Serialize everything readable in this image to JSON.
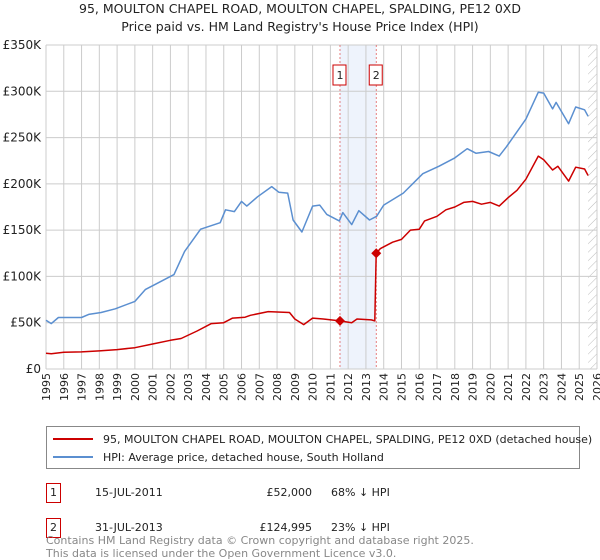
{
  "chart_data": {
    "type": "line",
    "title": "95, MOULTON CHAPEL ROAD, MOULTON CHAPEL, SPALDING, PE12 0XD",
    "subtitle": "Price paid vs. HM Land Registry's House Price Index (HPI)",
    "xlim": [
      1995,
      2026
    ],
    "ylim": [
      0,
      350000
    ],
    "y_ticks": [
      0,
      50000,
      100000,
      150000,
      200000,
      250000,
      300000,
      350000
    ],
    "y_tick_labels": [
      "£0",
      "£50K",
      "£100K",
      "£150K",
      "£200K",
      "£250K",
      "£300K",
      "£350K"
    ],
    "x_ticks": [
      1995,
      1996,
      1997,
      1998,
      1999,
      2000,
      2001,
      2002,
      2003,
      2004,
      2005,
      2006,
      2007,
      2008,
      2009,
      2010,
      2011,
      2012,
      2013,
      2014,
      2015,
      2016,
      2017,
      2018,
      2019,
      2020,
      2021,
      2022,
      2023,
      2024,
      2025,
      2026
    ],
    "grid": true,
    "shaded_period": [
      2011.54,
      2013.58
    ],
    "forecast_hatch_from": 2025.5,
    "series": [
      {
        "name": "95, MOULTON CHAPEL ROAD, MOULTON CHAPEL, SPALDING, PE12 0XD (detached house)",
        "color": "#cc0000",
        "x": [
          1995.0,
          1995.3,
          1996,
          1997,
          1998,
          1999,
          2000,
          2001,
          2002,
          2002.6,
          2003.5,
          2004.3,
          2005,
          2005.5,
          2006.2,
          2006.5,
          2007.5,
          2008.7,
          2009,
          2009.5,
          2010,
          2010.6,
          2011.54,
          2012.2,
          2012.5,
          2013.3,
          2013.5,
          2013.58,
          2013.8,
          2014.5,
          2015,
          2015.5,
          2016,
          2016.3,
          2017,
          2017.5,
          2018,
          2018.5,
          2019,
          2019.5,
          2020,
          2020.5,
          2021,
          2021.5,
          2022,
          2022.7,
          2023,
          2023.5,
          2023.8,
          2024.4,
          2024.8,
          2025.3,
          2025.5
        ],
        "y": [
          17000,
          16500,
          18000,
          18500,
          19500,
          21000,
          23000,
          27000,
          31000,
          33000,
          41000,
          49000,
          50000,
          55000,
          56000,
          58000,
          62000,
          61000,
          54000,
          48000,
          55000,
          54000,
          52000,
          50000,
          54000,
          53000,
          52000,
          124995,
          130000,
          137000,
          140000,
          150000,
          151000,
          160000,
          165000,
          172000,
          175000,
          180000,
          181000,
          178000,
          180000,
          176000,
          185000,
          193000,
          205000,
          230000,
          226000,
          215000,
          219000,
          203000,
          218000,
          216000,
          209000
        ]
      },
      {
        "name": "HPI: Average price, detached house, South Holland",
        "color": "#5b8fd0",
        "x": [
          1995.0,
          1995.3,
          1995.7,
          1997.0,
          1997.4,
          1998.1,
          1998.9,
          2000.0,
          2000.6,
          2001.1,
          2002.2,
          2002.8,
          2003.7,
          2004.8,
          2005.1,
          2005.6,
          2006.0,
          2006.3,
          2006.9,
          2007.7,
          2008.1,
          2008.6,
          2008.9,
          2009.4,
          2010.0,
          2010.4,
          2010.8,
          2011.5,
          2011.7,
          2012.2,
          2012.6,
          2013.2,
          2013.6,
          2014.0,
          2015.1,
          2016.2,
          2017.1,
          2018.0,
          2018.7,
          2019.2,
          2019.9,
          2020.5,
          2020.9,
          2022.0,
          2022.7,
          2023.0,
          2023.5,
          2023.7,
          2024.4,
          2024.8,
          2025.3,
          2025.5
        ],
        "y": [
          52700,
          49000,
          55600,
          55600,
          59000,
          61000,
          65000,
          73000,
          86000,
          91000,
          102000,
          127000,
          151000,
          158000,
          172000,
          170000,
          181000,
          176000,
          186000,
          197000,
          191000,
          190000,
          161000,
          148000,
          176000,
          177000,
          167000,
          160000,
          169000,
          156000,
          171000,
          161000,
          165000,
          177000,
          190000,
          211000,
          219000,
          228000,
          238000,
          233000,
          235000,
          230000,
          240000,
          270000,
          299000,
          298000,
          281000,
          288000,
          265000,
          283000,
          280000,
          273000
        ]
      }
    ],
    "annotations": [
      {
        "label": "1",
        "x": 2011.54,
        "y": 52000
      },
      {
        "label": "2",
        "x": 2013.58,
        "y": 124995
      }
    ]
  },
  "legend": {
    "property": "95, MOULTON CHAPEL ROAD, MOULTON CHAPEL, SPALDING, PE12 0XD (detached house)",
    "hpi": "HPI: Average price, detached house, South Holland"
  },
  "sales": [
    {
      "num": "1",
      "date": "15-JUL-2011",
      "price": "£52,000",
      "hpi": "68% ↓ HPI"
    },
    {
      "num": "2",
      "date": "31-JUL-2013",
      "price": "£124,995",
      "hpi": "23% ↓ HPI"
    }
  ],
  "footer": {
    "line1": "Contains HM Land Registry data © Crown copyright and database right 2025.",
    "line2": "This data is licensed under the Open Government Licence v3.0."
  }
}
